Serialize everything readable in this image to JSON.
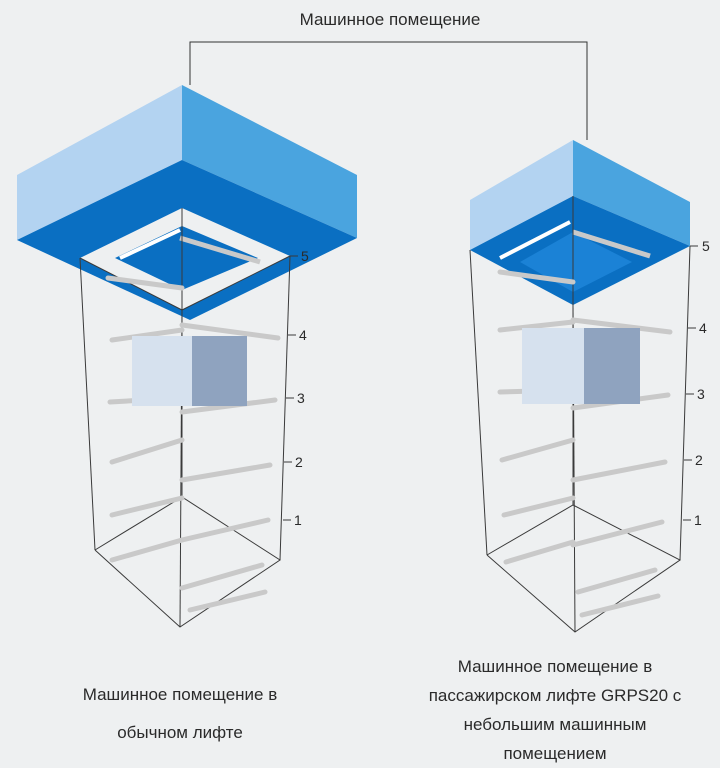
{
  "top_label": "Машинное помещение",
  "floor_labels": [
    "5",
    "4",
    "3",
    "2",
    "1"
  ],
  "captions": {
    "left": [
      "Машинное помещение в",
      "обычном лифте"
    ],
    "right": [
      "Машинное помещение в",
      "пассажирском лифте GRPS20 с",
      "небольшим машинным",
      "помещением"
    ]
  },
  "colors": {
    "room_front": "#0a6fc2",
    "room_left": "#b3d3f1",
    "room_right": "#4aa4df",
    "room_floor": "#1b82d6",
    "shaft_line": "#3a3a3a",
    "rail": "#c9c9c9",
    "car_front": "#d6e1ee",
    "car_side": "#8fa3bf"
  }
}
